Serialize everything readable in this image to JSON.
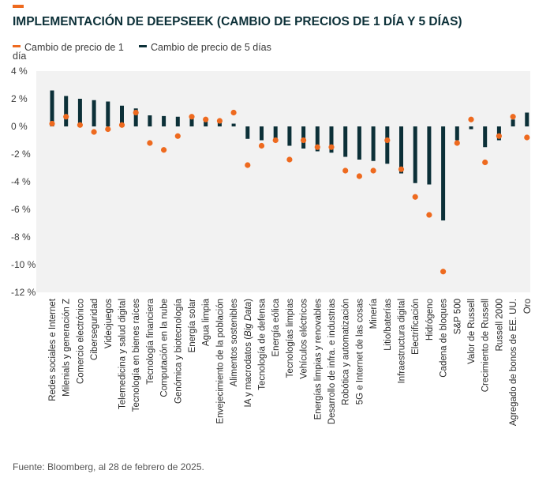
{
  "header": {
    "title": "IMPLEMENTACIÓN DE DEEPSEEK (CAMBIO DE PRECIOS DE 1 DÍA Y 5 DÍAS)"
  },
  "legend": {
    "series1_label_line1": "Cambio de precio de 1",
    "series1_label_line2": "día",
    "series2_label": "Cambio de precio de 5 días"
  },
  "source": "Fuente: Bloomberg, al 28 de febrero de 2025.",
  "colors": {
    "accent": "#ee6a1f",
    "dot": "#ee6a1f",
    "bar": "#0c3038",
    "plot_bg": "#f2f2f2"
  },
  "chart_data": {
    "type": "bar",
    "ylim": [
      -12,
      4
    ],
    "yticks": [
      "4 %",
      "2 %",
      "0 %",
      "-2 %",
      "-4 %",
      "-6 %",
      "-8 %",
      "-10 %",
      "-12 %"
    ],
    "ytick_values": [
      4,
      2,
      0,
      -2,
      -4,
      -6,
      -8,
      -10,
      -12
    ],
    "categories": [
      "Redes sociales e Internet",
      "Milenials y generación Z",
      "Comercio electrónico",
      "Ciberseguridad",
      "Videojuegos",
      "Telemedicina y salud digital",
      "Tecnología en bienes raíces",
      "Tecnología financiera",
      "Computación en la nube",
      "Genómica y biotecnología",
      "Energía solar",
      "Agua limpia",
      "Envejecimiento de la población",
      "Alimentos sostenibles",
      "IA y macrodatos (Big Data)",
      "Tecnología de defensa",
      "Energía eólica",
      "Tecnologías limpias",
      "Vehículos eléctricos",
      "Energías limpias y renovables",
      "Desarrollo de infra. e industrias",
      "Robótica y automatización",
      "5G e Internet de las cosas",
      "Minería",
      "Litio/baterías",
      "Infraestructura digital",
      "Electrificación",
      "Hidrógeno",
      "Cadena de bloques",
      "S&P 500",
      "Valor de Russell",
      "Crecimiento de Russell",
      "Russell 2000",
      "Agregado de bonos de EE. UU.",
      "Oro"
    ],
    "series": [
      {
        "name": "Cambio de precio de 5 días",
        "values": [
          2.6,
          2.2,
          2.0,
          1.9,
          1.8,
          1.5,
          1.3,
          0.8,
          0.75,
          0.7,
          0.65,
          0.6,
          0.3,
          0.2,
          -0.9,
          -1.0,
          -1.1,
          -1.4,
          -1.6,
          -1.8,
          -1.9,
          -2.2,
          -2.4,
          -2.5,
          -2.7,
          -3.4,
          -4.1,
          -4.2,
          -6.8,
          -1.0,
          -0.2,
          -1.5,
          -1.0,
          0.5,
          1.0
        ]
      },
      {
        "name": "Cambio de precio de 1 día",
        "values": [
          0.2,
          0.7,
          0.1,
          -0.4,
          -0.2,
          0.1,
          1.0,
          -1.2,
          -1.7,
          -0.7,
          0.7,
          0.5,
          0.4,
          1.0,
          -2.8,
          -1.4,
          -1.0,
          -2.4,
          -1.0,
          -1.5,
          -1.5,
          -3.2,
          -3.6,
          -3.2,
          -1.0,
          -3.1,
          -5.1,
          -6.4,
          -10.5,
          -1.2,
          0.5,
          -2.6,
          -0.7,
          0.7,
          -0.8
        ]
      }
    ]
  }
}
